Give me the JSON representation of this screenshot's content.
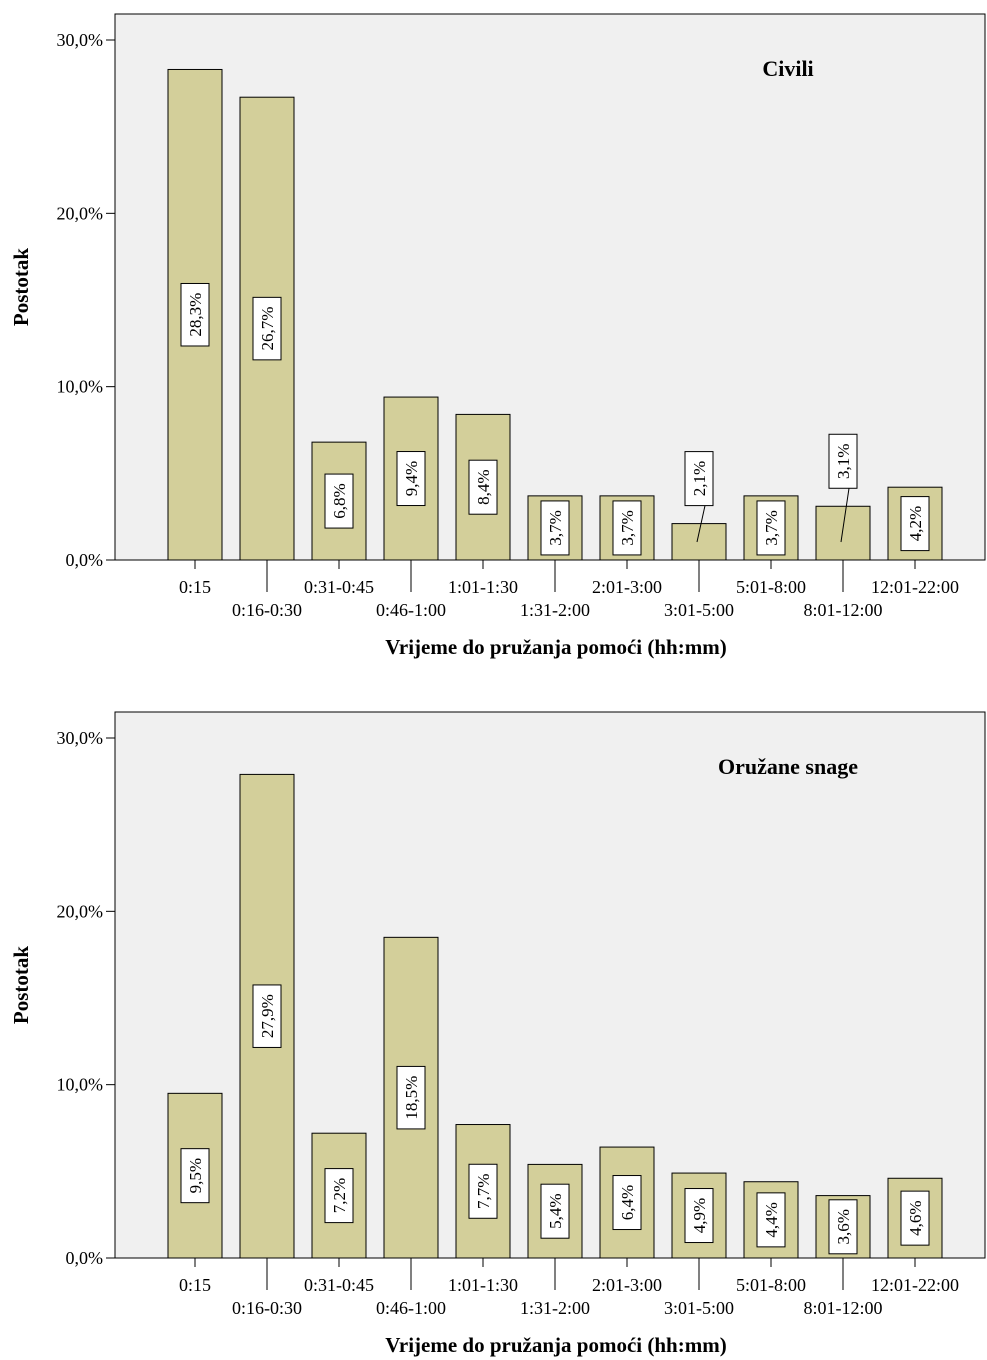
{
  "chart_data": [
    {
      "type": "bar",
      "title": "Civili",
      "xlabel": "Vrijeme do pružanja pomoći (hh:mm)",
      "ylabel": "Postotak",
      "ylim": [
        0,
        30
      ],
      "yticks": [
        "0,0%",
        "10,0%",
        "20,0%",
        "30,0%"
      ],
      "grid": false,
      "categories": [
        "0:15",
        "0:16-0:30",
        "0:31-0:45",
        "0:46-1:00",
        "1:01-1:30",
        "1:31-2:00",
        "2:01-3:00",
        "3:01-5:00",
        "5:01-8:00",
        "8:01-12:00",
        "12:01-22:00"
      ],
      "values": [
        28.3,
        26.7,
        6.8,
        9.4,
        8.4,
        3.7,
        3.7,
        2.1,
        3.7,
        3.1,
        4.2
      ],
      "data_labels": [
        "28,3%",
        "26,7%",
        "6,8%",
        "9,4%",
        "8,4%",
        "3,7%",
        "3,7%",
        "2,1%",
        "3,7%",
        "3,1%",
        "4,2%"
      ]
    },
    {
      "type": "bar",
      "title": "Oružane snage",
      "xlabel": "Vrijeme do pružanja pomoći (hh:mm)",
      "ylabel": "Postotak",
      "ylim": [
        0,
        30
      ],
      "yticks": [
        "0,0%",
        "10,0%",
        "20,0%",
        "30,0%"
      ],
      "grid": false,
      "categories": [
        "0:15",
        "0:16-0:30",
        "0:31-0:45",
        "0:46-1:00",
        "1:01-1:30",
        "1:31-2:00",
        "2:01-3:00",
        "3:01-5:00",
        "5:01-8:00",
        "8:01-12:00",
        "12:01-22:00"
      ],
      "values": [
        9.5,
        27.9,
        7.2,
        18.5,
        7.7,
        5.4,
        6.4,
        4.9,
        4.4,
        3.6,
        4.6
      ],
      "data_labels": [
        "9,5%",
        "27,9%",
        "7,2%",
        "18,5%",
        "7,7%",
        "5,4%",
        "6,4%",
        "4,9%",
        "4,4%",
        "3,6%",
        "4,6%"
      ]
    }
  ],
  "colors": {
    "bar_fill": "#d3cf9a",
    "plot_background": "#f0f0f0",
    "label_box": "#ffffff"
  }
}
